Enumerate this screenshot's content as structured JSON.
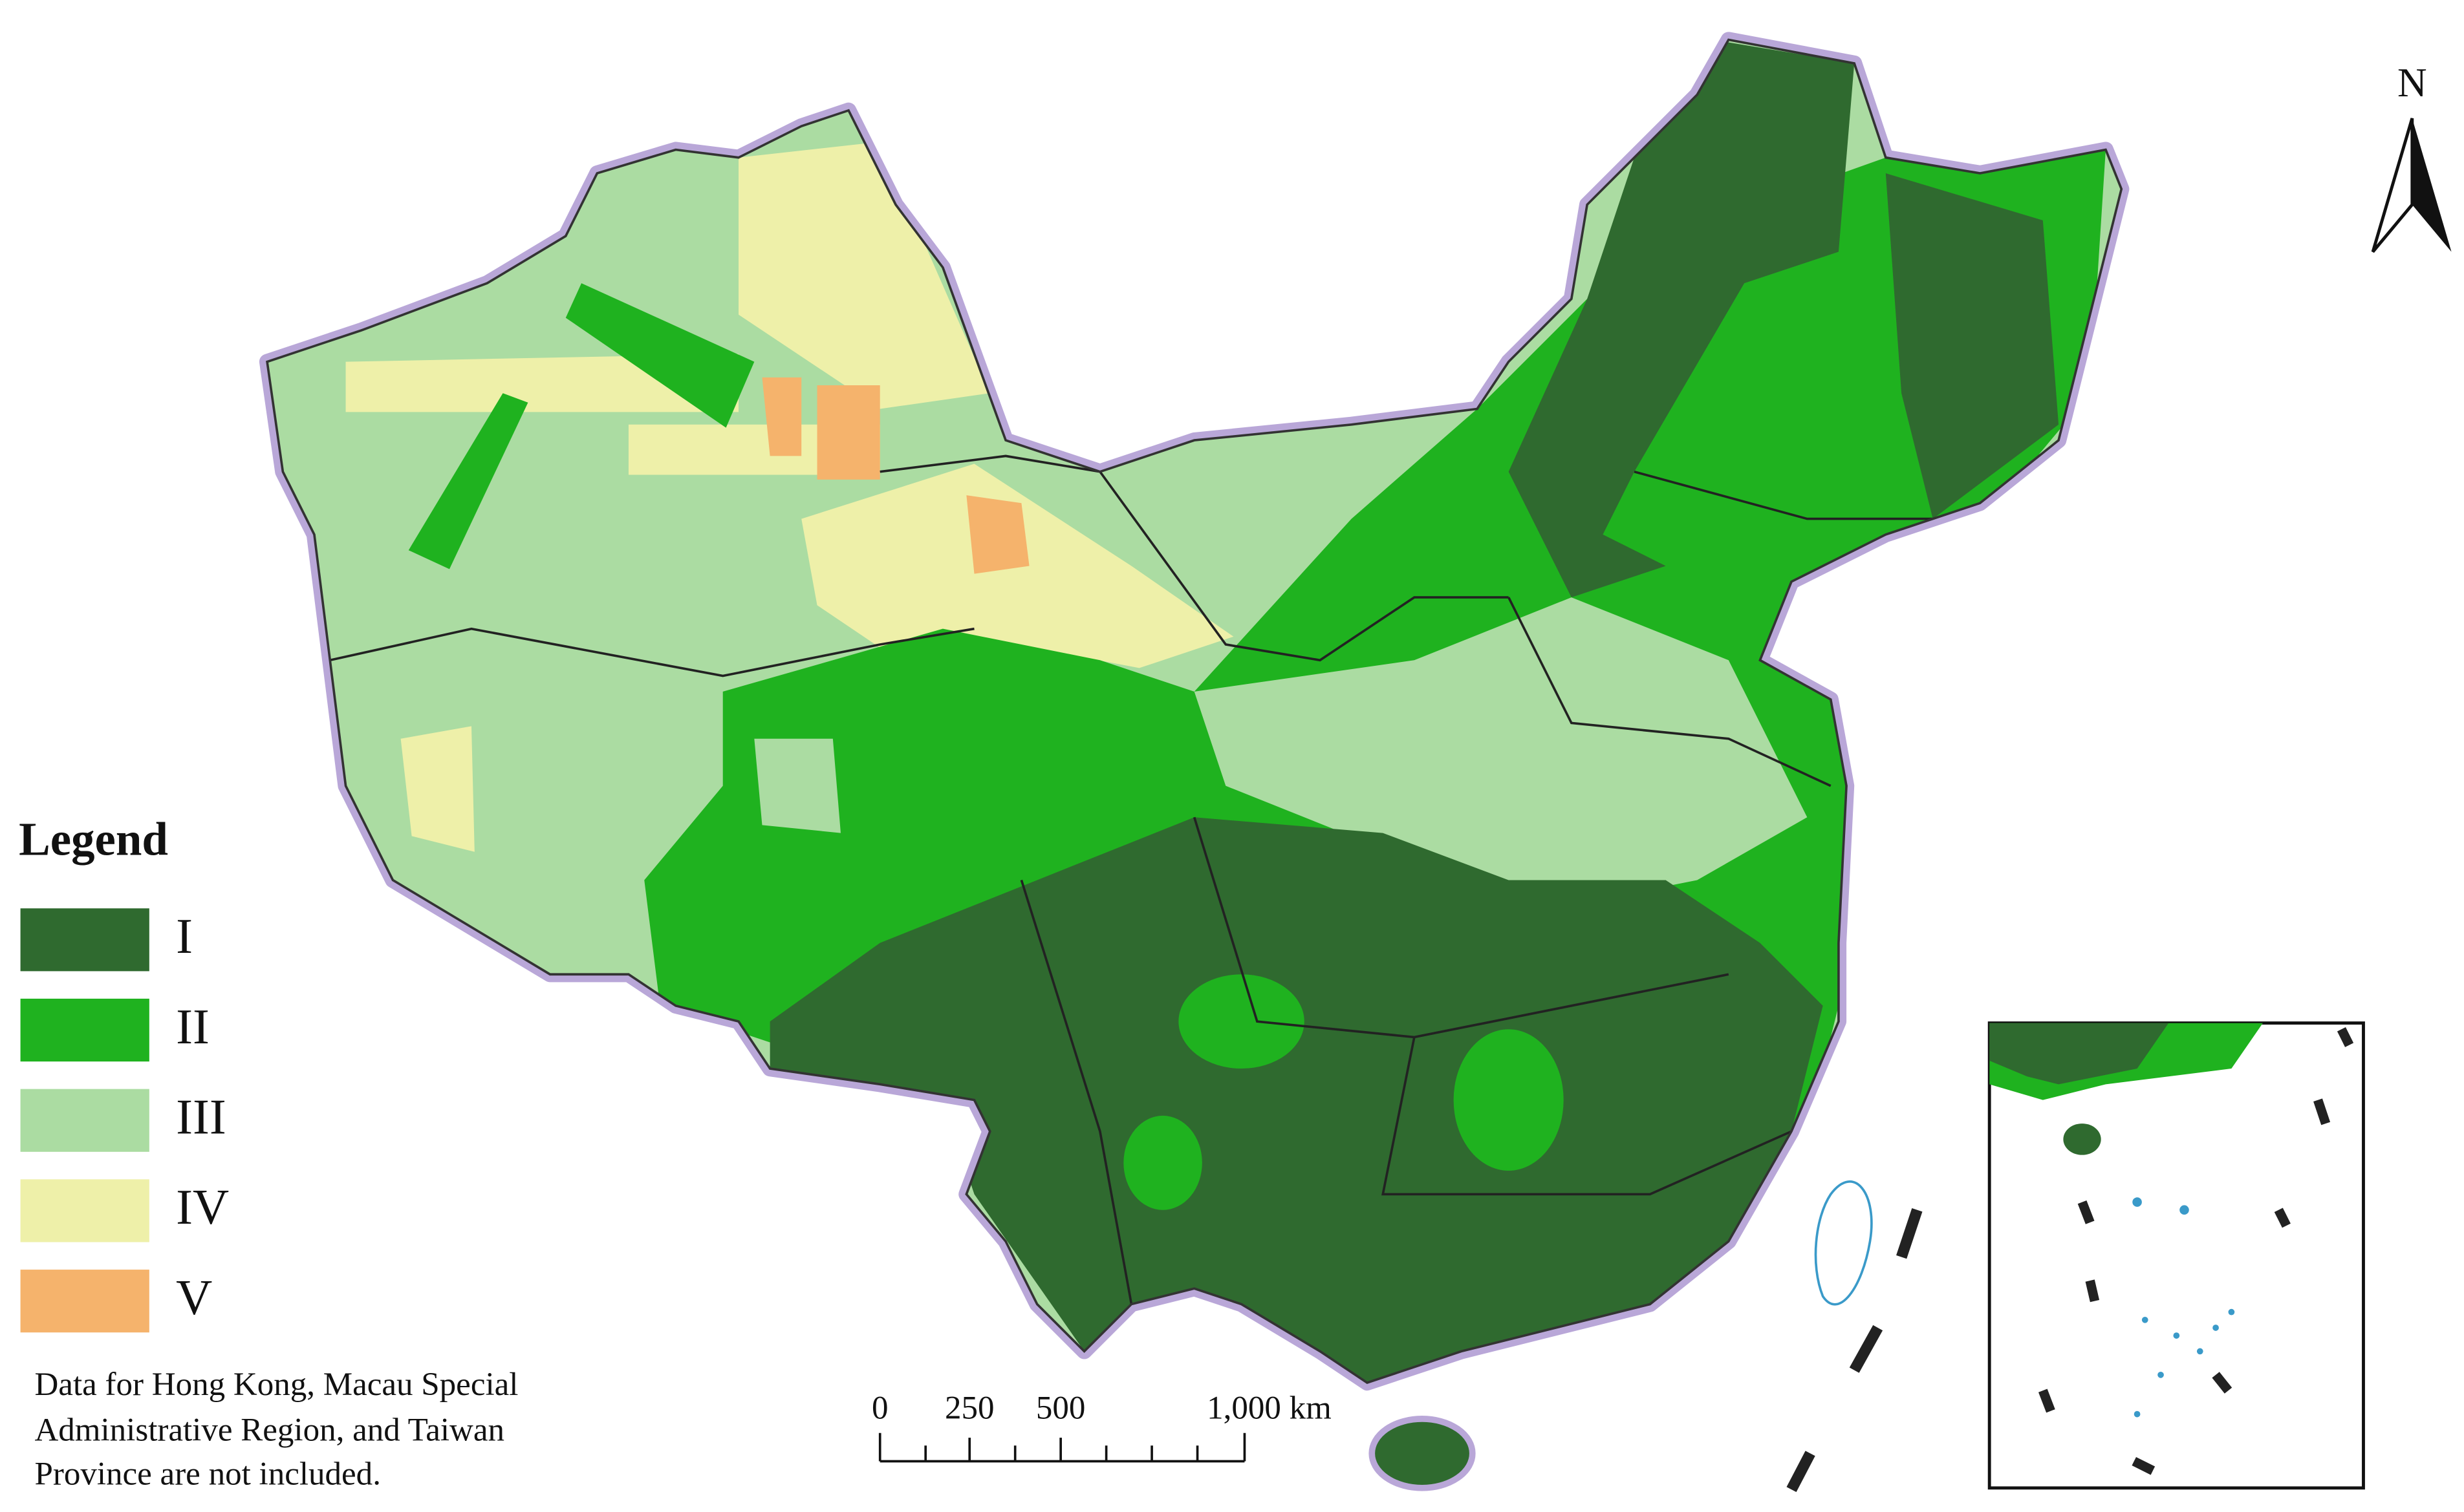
{
  "legend": {
    "title": "Legend",
    "items": [
      {
        "label": "I",
        "color": "#2f6a2f"
      },
      {
        "label": "II",
        "color": "#1fb21f"
      },
      {
        "label": "III",
        "color": "#abdca2"
      },
      {
        "label": "IV",
        "color": "#eef0a9"
      },
      {
        "label": "V",
        "color": "#f5b36c"
      }
    ]
  },
  "note": [
    "Data for Hong Kong, Macau Special",
    "Administrative Region, and Taiwan",
    "Province are not included."
  ],
  "north_arrow": "N",
  "scale_bar": [
    "0",
    "250",
    "500",
    "1,000 km"
  ]
}
